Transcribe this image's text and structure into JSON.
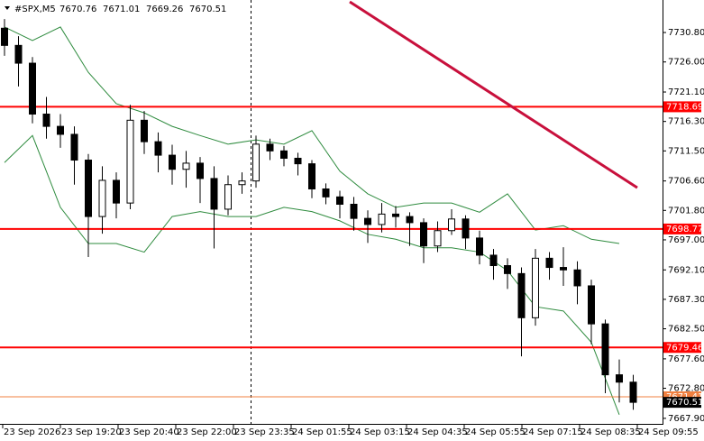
{
  "chart_data": {
    "type": "candlestick",
    "symbol": "#SPX,M5",
    "header_values": [
      7670.76,
      7671.01,
      7669.26,
      7670.51
    ],
    "ylim": [
      7667.0,
      7736.1
    ],
    "yticks": [
      {
        "value": 7730.8,
        "label": "7730.80"
      },
      {
        "value": 7726,
        "label": "7726.00"
      },
      {
        "value": 7721.1,
        "label": "7721.10"
      },
      {
        "value": 7716.3,
        "label": "7716.30"
      },
      {
        "value": 7711.5,
        "label": "7711.50"
      },
      {
        "value": 7706.6,
        "label": "7706.60"
      },
      {
        "value": 7701.8,
        "label": "7701.80"
      },
      {
        "value": 7697,
        "label": "7697.00"
      },
      {
        "value": 7692.1,
        "label": "7692.10"
      },
      {
        "value": 7687.3,
        "label": "7687.30"
      },
      {
        "value": 7682.5,
        "label": "7682.50"
      },
      {
        "value": 7677.6,
        "label": "7677.60"
      },
      {
        "value": 7672.8,
        "label": "7672.80"
      },
      {
        "value": 7667.9,
        "label": "7667.90"
      }
    ],
    "x_labels": [
      "23 Sep 2026",
      "23 Sep 19:20",
      "23 Sep 20:40",
      "23 Sep 22:00",
      "23 Sep 23:35",
      "24 Sep 01:55",
      "24 Sep 03:15",
      "24 Sep 04:35",
      "24 Sep 05:55",
      "24 Sep 07:15",
      "24 Sep 08:35",
      "24 Sep 09:55"
    ],
    "candles": [
      [
        7731.5,
        7733.0,
        7727.0,
        7728.7
      ],
      [
        7728.7,
        7730.2,
        7722.0,
        7725.8
      ],
      [
        7725.8,
        7726.8,
        7716.0,
        7717.5
      ],
      [
        7717.5,
        7720.3,
        7713.5,
        7715.5
      ],
      [
        7715.5,
        7717.5,
        7712.0,
        7714.2
      ],
      [
        7714.2,
        7715.5,
        7706.0,
        7710.0
      ],
      [
        7710.0,
        7711.0,
        7694.2,
        7700.8
      ],
      [
        7700.8,
        7709.0,
        7698.0,
        7706.7
      ],
      [
        7706.7,
        7708.0,
        7700.5,
        7703.0
      ],
      [
        7703.0,
        7719.0,
        7702.0,
        7716.5
      ],
      [
        7716.5,
        7718.0,
        7711.0,
        7713.0
      ],
      [
        7713.0,
        7714.5,
        7708.0,
        7710.8
      ],
      [
        7710.8,
        7712.5,
        7706.0,
        7708.5
      ],
      [
        7708.5,
        7711.5,
        7705.5,
        7709.5
      ],
      [
        7709.5,
        7710.5,
        7703.0,
        7707.0
      ],
      [
        7707.0,
        7709.0,
        7695.6,
        7702.0
      ],
      [
        7702.0,
        7707.5,
        7701.0,
        7706.0
      ],
      [
        7706.0,
        7708.0,
        7704.5,
        7706.6
      ],
      [
        7706.6,
        7714.0,
        7705.5,
        7712.6
      ],
      [
        7712.6,
        7713.5,
        7710.0,
        7711.5
      ],
      [
        7711.5,
        7712.3,
        7709.0,
        7710.3
      ],
      [
        7710.3,
        7711.2,
        7707.5,
        7709.4
      ],
      [
        7709.4,
        7710.0,
        7703.8,
        7705.3
      ],
      [
        7705.3,
        7706.2,
        7702.8,
        7704.0
      ],
      [
        7704.0,
        7705.0,
        7700.5,
        7702.8
      ],
      [
        7702.8,
        7704.0,
        7698.5,
        7700.5
      ],
      [
        7700.5,
        7701.8,
        7696.5,
        7699.5
      ],
      [
        7699.5,
        7703.0,
        7698.2,
        7701.2
      ],
      [
        7701.2,
        7702.5,
        7699.0,
        7700.8
      ],
      [
        7700.8,
        7701.5,
        7696.0,
        7699.8
      ],
      [
        7699.8,
        7700.5,
        7693.2,
        7696.0
      ],
      [
        7696.0,
        7700.0,
        7695.0,
        7698.5
      ],
      [
        7698.5,
        7702.0,
        7697.8,
        7700.4
      ],
      [
        7700.4,
        7701.0,
        7695.5,
        7697.3
      ],
      [
        7697.3,
        7698.5,
        7693.0,
        7694.5
      ],
      [
        7694.5,
        7695.5,
        7690.5,
        7692.8
      ],
      [
        7692.8,
        7694.0,
        7689.0,
        7691.5
      ],
      [
        7691.5,
        7692.5,
        7678.0,
        7684.3
      ],
      [
        7684.3,
        7695.5,
        7683.0,
        7694.0
      ],
      [
        7694.0,
        7695.0,
        7690.5,
        7692.5
      ],
      [
        7692.5,
        7695.8,
        7689.5,
        7692.1
      ],
      [
        7692.1,
        7693.5,
        7686.5,
        7689.5
      ],
      [
        7689.5,
        7690.5,
        7680.0,
        7683.3
      ],
      [
        7683.3,
        7684.0,
        7672.0,
        7675.0
      ],
      [
        7675.0,
        7677.5,
        7670.5,
        7673.8
      ],
      [
        7673.8,
        7675.0,
        7669.3,
        7670.51
      ]
    ],
    "upper_band": [
      7731.7,
      7729.5,
      7731.7,
      7724.3,
      7719.2,
      7717.7,
      7715.5,
      7714.0,
      7712.6,
      7713.3,
      7712.6,
      7714.8,
      7708.2,
      7704.5,
      7702.3,
      7703.0,
      7703.0,
      7701.5,
      7704.5,
      7698.6,
      7699.3,
      7697.1,
      7696.4
    ],
    "lower_band": [
      7709.6,
      7714.0,
      7702.3,
      7696.4,
      7696.4,
      7695.0,
      7700.8,
      7701.6,
      7700.8,
      7700.8,
      7702.3,
      7701.6,
      7700.1,
      7697.9,
      7697.1,
      7695.7,
      7695.7,
      7695.0,
      7692.0,
      7686.1,
      7685.4,
      7680.3,
      7668.5
    ],
    "band_color": "#2e8b3e",
    "trendline": [
      7735.8,
      7705.5
    ],
    "trendline_color": "#c8103c",
    "levels": [
      7718.69,
      7698.77,
      7679.46
    ],
    "level_color": "#ff0000",
    "ask_line": 7671.41,
    "ask_color": "#f08040",
    "last_price": 7670.51
  }
}
